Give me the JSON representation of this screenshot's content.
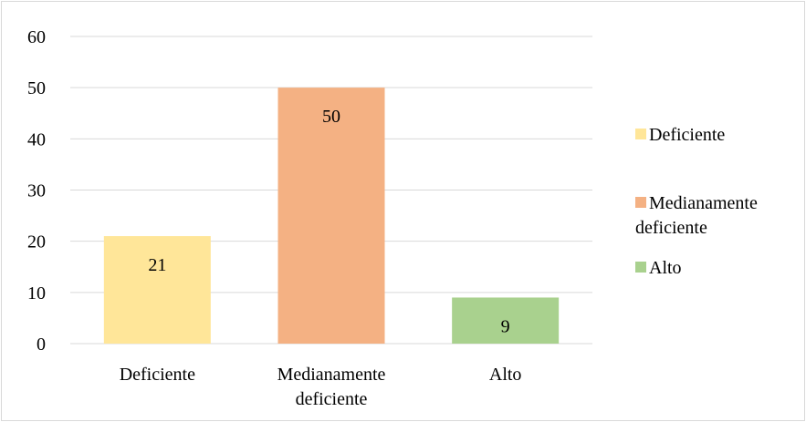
{
  "chart_data": {
    "type": "bar",
    "categories": [
      "Deficiente",
      "Medianamente deficiente",
      "Alto"
    ],
    "category_lines": [
      [
        "Deficiente"
      ],
      [
        "Medianamente",
        "deficiente"
      ],
      [
        "Alto"
      ]
    ],
    "values": [
      21,
      50,
      9
    ],
    "data_labels": [
      "21",
      "50",
      "9"
    ],
    "colors": [
      "#FFE699",
      "#F4B183",
      "#A9D18E"
    ],
    "legend": {
      "placement": "right",
      "entries": [
        {
          "lines": [
            "Deficiente"
          ],
          "color": "#FFE699"
        },
        {
          "lines": [
            "Medianamente",
            "deficiente"
          ],
          "color": "#F4B183"
        },
        {
          "lines": [
            "Alto"
          ],
          "color": "#A9D18E"
        }
      ]
    },
    "y_ticks": [
      "0",
      "10",
      "20",
      "30",
      "40",
      "50",
      "60"
    ],
    "ylim": [
      0,
      60
    ],
    "grid": true,
    "title": "",
    "xlabel": "",
    "ylabel": ""
  }
}
